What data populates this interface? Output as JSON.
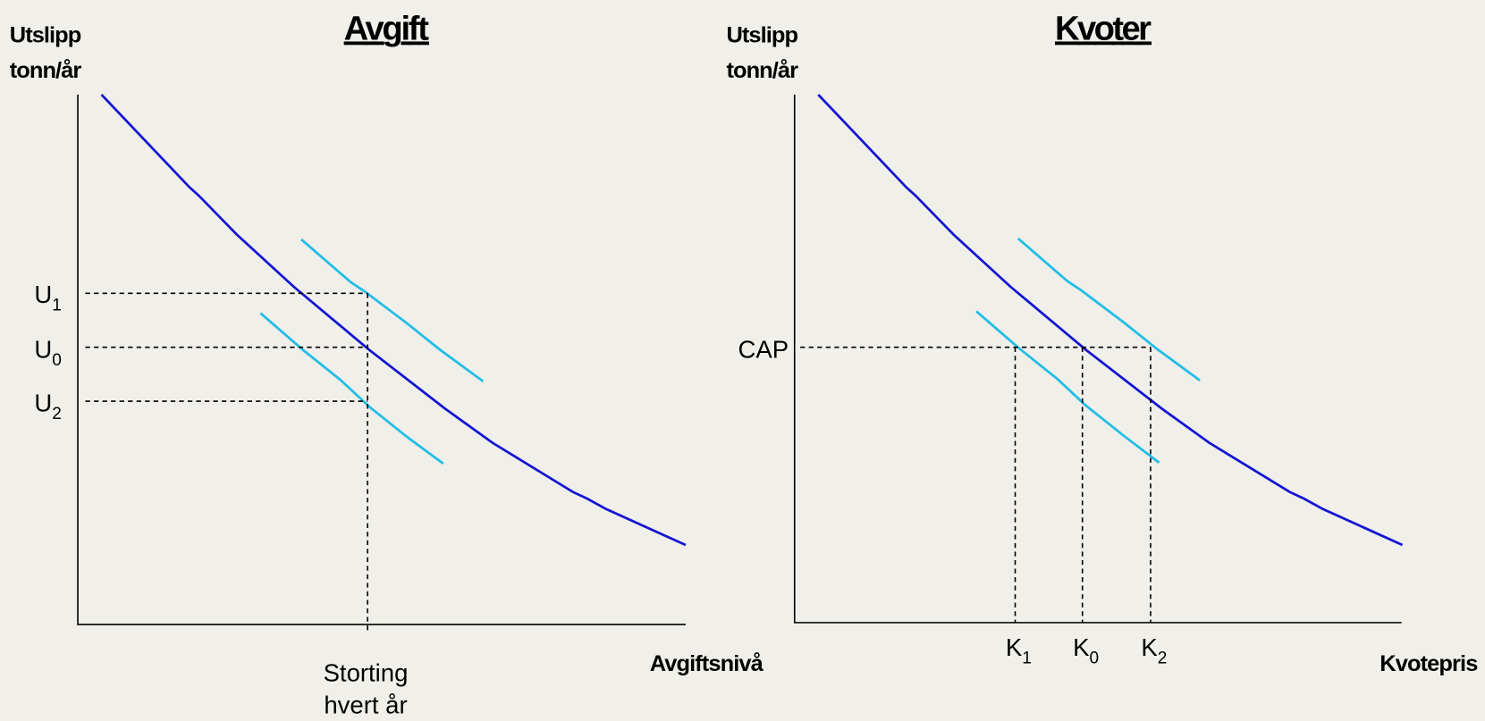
{
  "panels": [
    {
      "title": "Avgift",
      "y_label": [
        "Utslipp",
        "tonn/år"
      ],
      "x_label": "Avgiftsnivå",
      "y_levels": [
        {
          "base": "U",
          "sub": "1"
        },
        {
          "base": "U",
          "sub": "0"
        },
        {
          "base": "U",
          "sub": "2"
        }
      ],
      "x_marker": [
        "Storting",
        "hvert år"
      ]
    },
    {
      "title": "Kvoter",
      "y_label": [
        "Utslipp",
        "tonn/år"
      ],
      "x_label": "Kvotepris",
      "y_levels": [
        {
          "base": "CAP"
        }
      ],
      "x_levels": [
        {
          "base": "K",
          "sub": "1"
        },
        {
          "base": "K",
          "sub": "0"
        },
        {
          "base": "K",
          "sub": "2"
        }
      ]
    }
  ]
}
